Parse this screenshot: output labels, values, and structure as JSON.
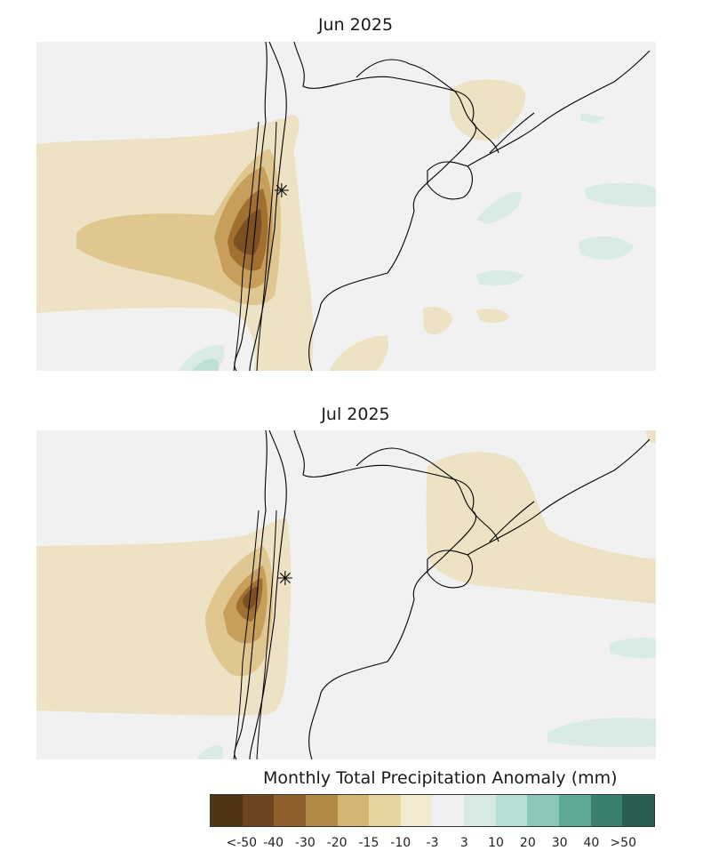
{
  "panels": [
    {
      "title": "Jun 2025"
    },
    {
      "title": "Jul 2025"
    }
  ],
  "legend": {
    "title": "Monthly Total Precipitation Anomaly (mm)",
    "colors": [
      "#4f3514",
      "#6e4520",
      "#8e5f2c",
      "#b08a45",
      "#d2b671",
      "#e6d5a0",
      "#f1ead0",
      "#f0f0f0",
      "#d6eae3",
      "#b6e0d6",
      "#8ec5bc",
      "#5ea89a",
      "#3b7f72",
      "#285e54"
    ],
    "labels": [
      "<-50",
      "-40",
      "-30",
      "-20",
      "-15",
      "-10",
      "-3",
      "3",
      "10",
      "20",
      "30",
      "40",
      ">50"
    ]
  },
  "map_colors": {
    "background": "#f1f1f1",
    "anomaly_-10": "#ece2c2",
    "anomaly_-15": "#dcc28a",
    "anomaly_-20": "#c49a55",
    "anomaly_-30": "#9c6b2e",
    "anomaly_-40": "#7a4f1f",
    "anomaly_+10": "#d8ebe4",
    "anomaly_+20": "#bfe0d6",
    "borders": "#000000"
  },
  "marker": {
    "symbol": "✳",
    "name": "asterisk-station-marker"
  }
}
